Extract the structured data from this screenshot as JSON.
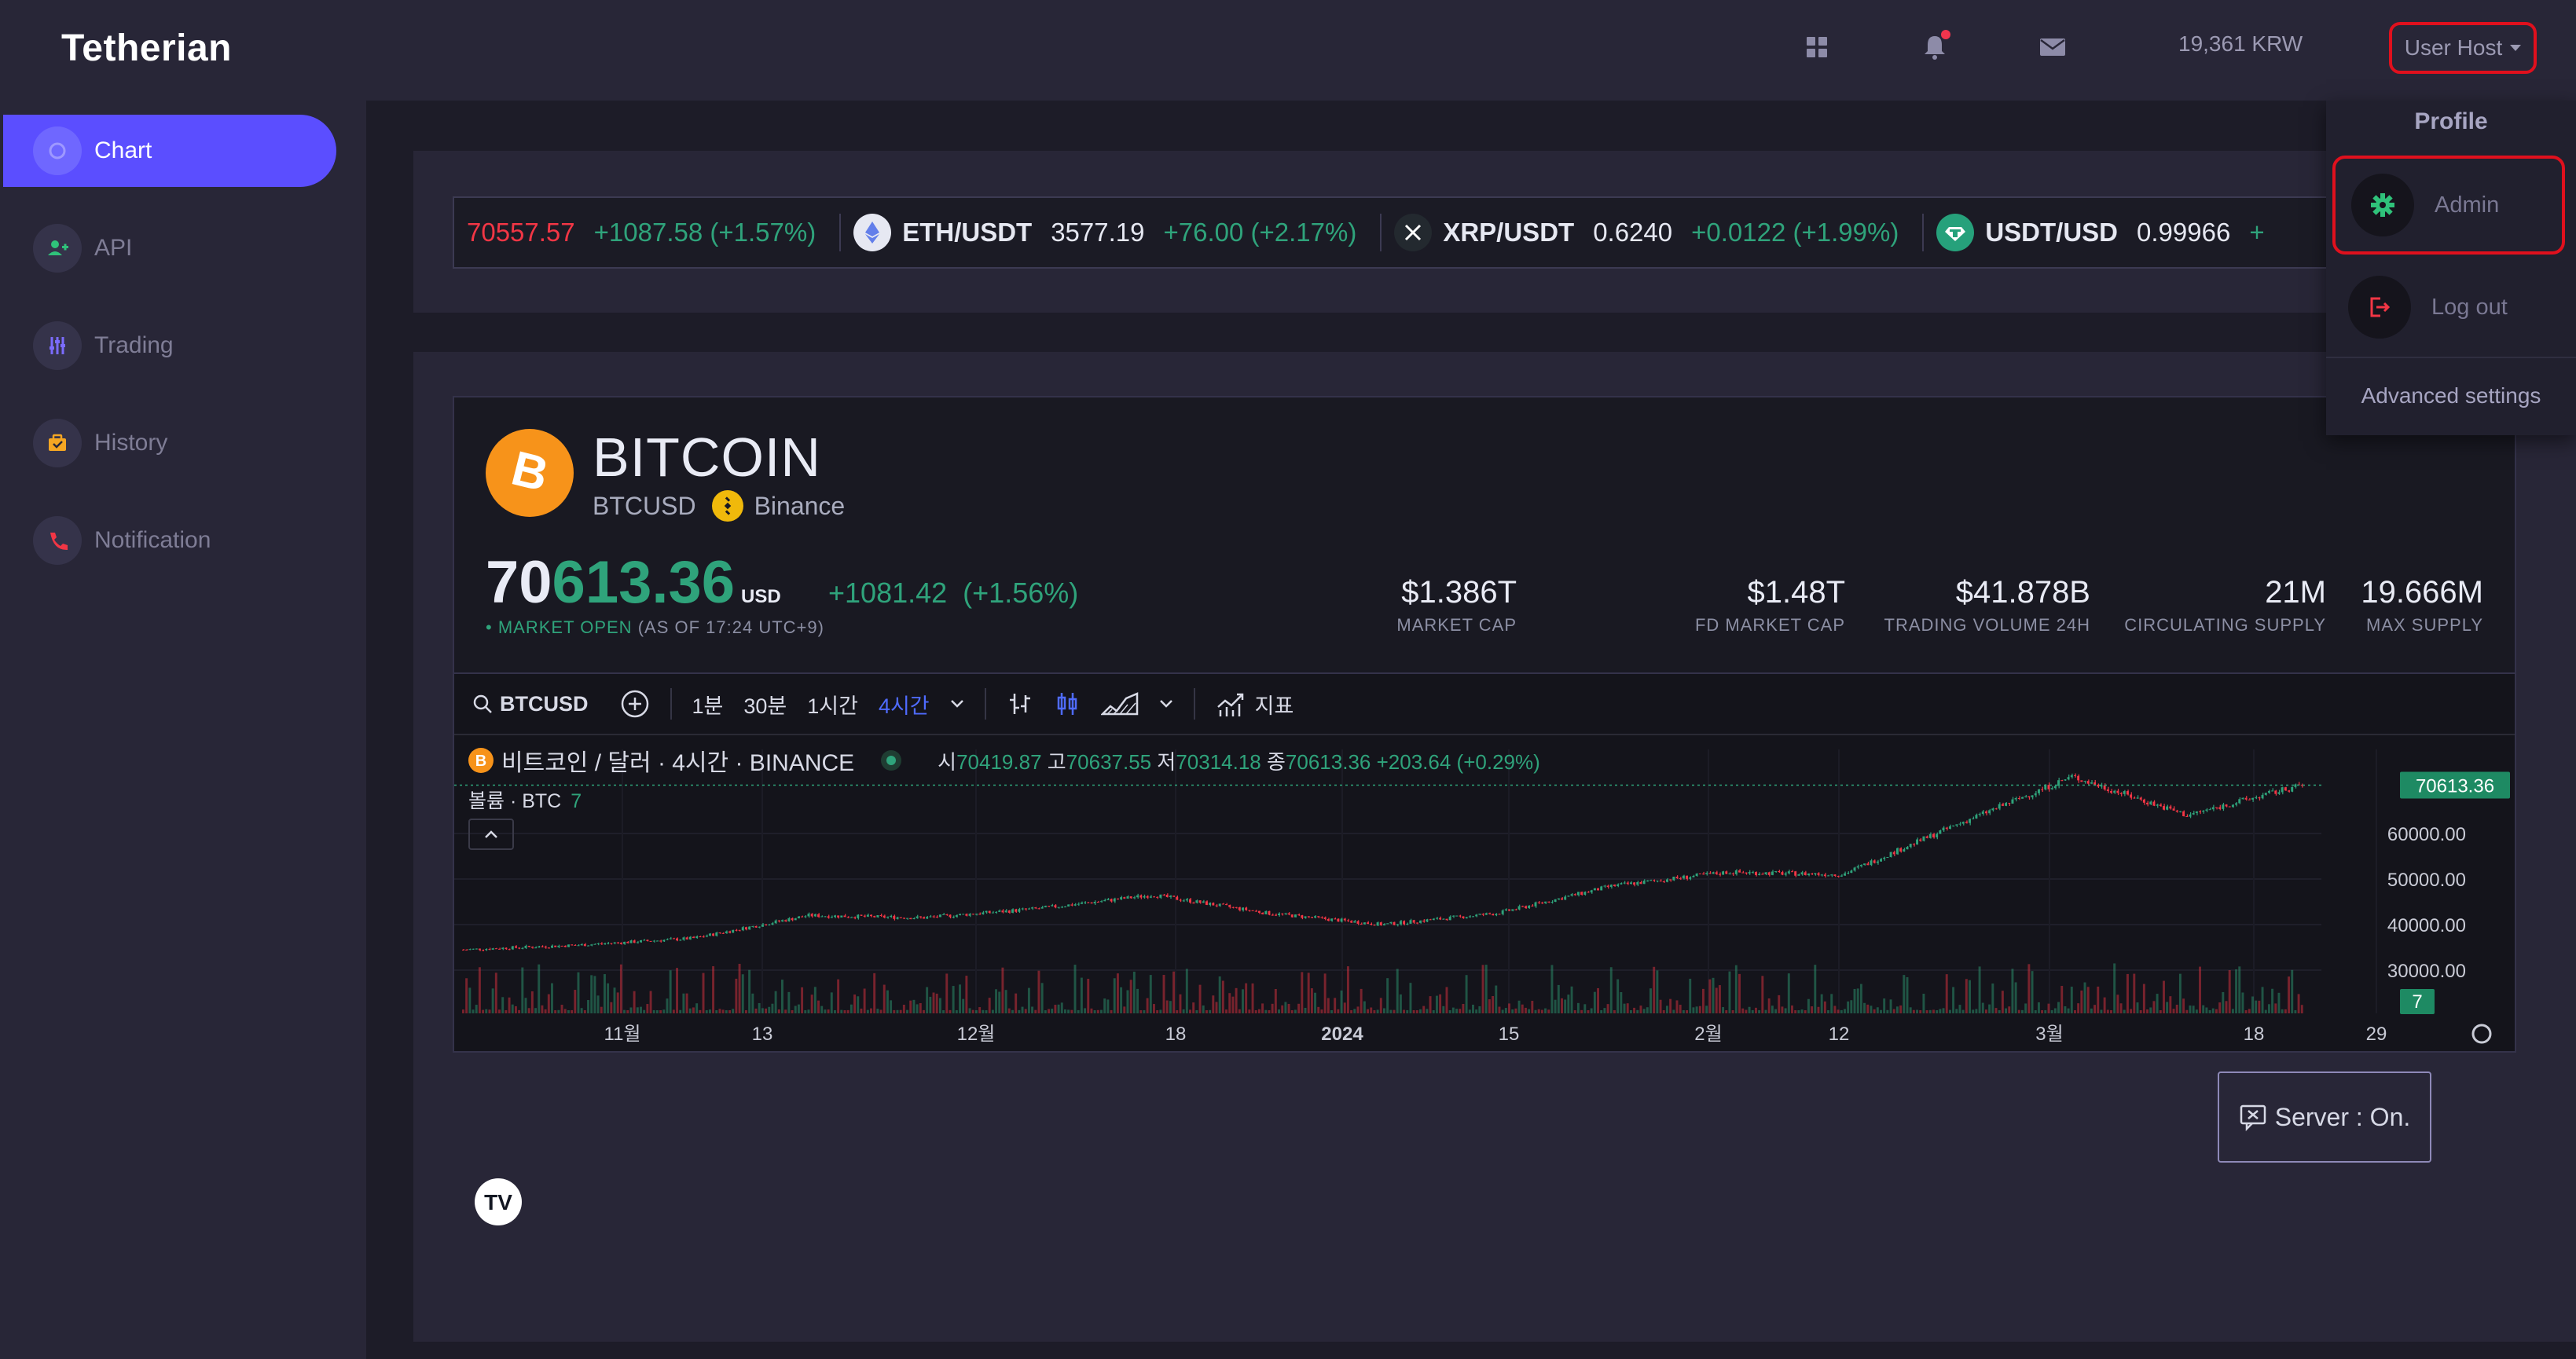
{
  "brand": "Tetherian",
  "sidebar": {
    "items": [
      {
        "label": "Chart",
        "icon": "chart-icon",
        "active": true
      },
      {
        "label": "API",
        "icon": "user-plus-icon"
      },
      {
        "label": "Trading",
        "icon": "sliders-icon"
      },
      {
        "label": "History",
        "icon": "briefcase-icon"
      },
      {
        "label": "Notification",
        "icon": "phone-icon"
      }
    ]
  },
  "header": {
    "balance": "19,361 KRW",
    "user": "User Host",
    "icons": [
      "apps-grid-icon",
      "bell-icon",
      "mail-icon"
    ]
  },
  "ticker": [
    {
      "pair": "",
      "price": "70557.57",
      "change": "+1087.58 (+1.57%)",
      "price_color": "#f23645"
    },
    {
      "pair": "ETH/USDT",
      "price": "3577.19",
      "change": "+76.00 (+2.17%)"
    },
    {
      "pair": "XRP/USDT",
      "price": "0.6240",
      "change": "+0.0122 (+1.99%)"
    },
    {
      "pair": "USDT/USD",
      "price": "0.99966",
      "change": "+"
    }
  ],
  "coin": {
    "name": "BITCOIN",
    "symbol": "BTCUSD",
    "exchange": "Binance",
    "price_head": "70",
    "price_tail": "613.36",
    "price_unit": "USD",
    "change": "+1081.42",
    "change_pct": "(+1.56%)",
    "market_status": "MARKET OPEN",
    "as_of": "(AS OF 17:24 UTC+9)",
    "stats": [
      {
        "value": "$1.386T",
        "label": "MARKET CAP"
      },
      {
        "value": "$1.48T",
        "label": "FD MARKET CAP"
      },
      {
        "value": "$41.878B",
        "label": "TRADING VOLUME 24H"
      },
      {
        "value": "21M",
        "label": "CIRCULATING SUPPLY"
      },
      {
        "value": "19.666M",
        "label": "MAX SUPPLY"
      }
    ]
  },
  "chart_toolbar": {
    "symbol": "BTCUSD",
    "intervals": [
      "1분",
      "30분",
      "1시간",
      "4시간"
    ],
    "active_interval": "4시간",
    "indicators": "지표"
  },
  "chart_legend": {
    "title": "비트코인 / 달러 · 4시간 · BINANCE",
    "open_label": "시",
    "open": "70419.87",
    "high_label": "고",
    "high": "70637.55",
    "low_label": "저",
    "low": "70314.18",
    "close_label": "종",
    "close": "70613.36",
    "change": "+203.64 (+0.29%)",
    "volume_label": "볼륨 · BTC",
    "volume": "7"
  },
  "server_status": "Server : On.",
  "profile_menu": {
    "title": "Profile",
    "items": [
      {
        "label": "Admin",
        "icon": "gear-icon"
      },
      {
        "label": "Log out",
        "icon": "logout-icon"
      }
    ],
    "advanced": "Advanced settings"
  },
  "chart_data": {
    "type": "candlestick",
    "title": "비트코인 / 달러 · 4시간 · BINANCE",
    "series_name": "BTCUSD",
    "x_ticks": [
      "11월",
      "13",
      "12월",
      "18",
      "2024",
      "15",
      "2월",
      "12",
      "3월",
      "18",
      "29"
    ],
    "y_ticks": [
      "30000.00",
      "40000.00",
      "50000.00",
      "60000.00"
    ],
    "ylim": [
      25000,
      75000
    ],
    "last_price": "70613.36",
    "last_volume": "7",
    "approx_close_path": [
      {
        "x": "10월 말",
        "y": 34500
      },
      {
        "x": "11월",
        "y": 35500
      },
      {
        "x": "11월 중",
        "y": 37000
      },
      {
        "x": "12월 초",
        "y": 42000
      },
      {
        "x": "12월 중",
        "y": 41500
      },
      {
        "x": "2024",
        "y": 43500
      },
      {
        "x": "1월 11",
        "y": 46500
      },
      {
        "x": "1월 중",
        "y": 42500
      },
      {
        "x": "1월 말",
        "y": 40000
      },
      {
        "x": "2월",
        "y": 42500
      },
      {
        "x": "2월 12",
        "y": 48500
      },
      {
        "x": "2월 중",
        "y": 51500
      },
      {
        "x": "2월 말",
        "y": 51000
      },
      {
        "x": "3월",
        "y": 62000
      },
      {
        "x": "3월 14",
        "y": 72500
      },
      {
        "x": "3월 20",
        "y": 64000
      },
      {
        "x": "3월 29",
        "y": 70613.36
      }
    ]
  },
  "colors": {
    "accent": "#5b4eff",
    "up": "#2fa37b",
    "down": "#f23645",
    "highlight": "#e0101d",
    "bitcoin": "#f7931a"
  }
}
